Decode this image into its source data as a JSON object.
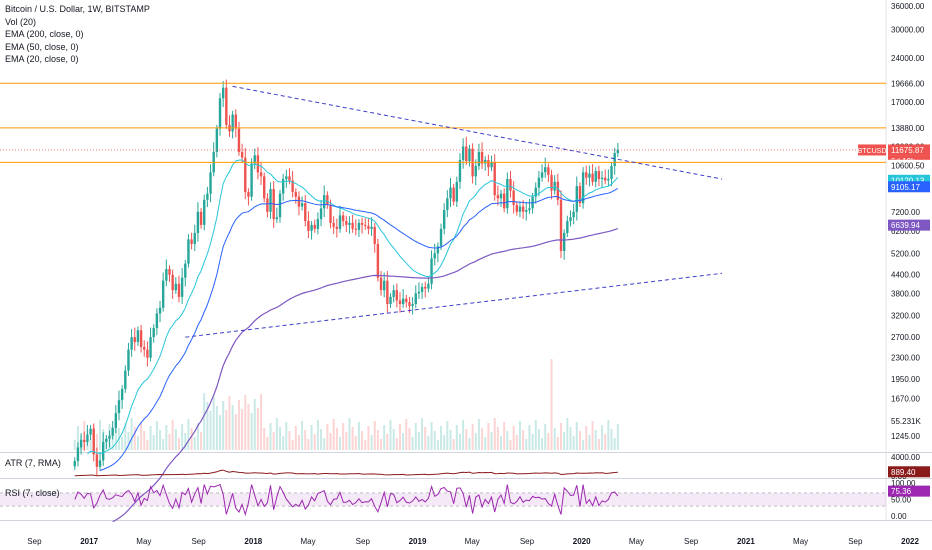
{
  "legend": {
    "title": "Bitcoin / U.S. Dollar, 1W, BITSTAMP",
    "vol": "Vol (20)",
    "ema200": "EMA (200, close, 0)",
    "ema50": "EMA (50, close, 0)",
    "ema20": "EMA (20, close, 0)"
  },
  "atr_label": "ATR (7, RMA)",
  "rsi_label": "RSI (7, close)",
  "colors": {
    "up": "#26a69a",
    "down": "#ef5350",
    "ema200": "#7e57c2",
    "ema50": "#2962ff",
    "ema20": "#26c6da",
    "level": "#ff9800",
    "trend": "#3d3dc6",
    "atr": "#8b1a1a",
    "rsi": "#9c27b0"
  },
  "chart_data": [
    {
      "type": "candlestick",
      "title": "Bitcoin / U.S. Dollar, 1W, BITSTAMP",
      "scale": "log",
      "y_ticks": [
        36000,
        30000,
        24000,
        17000,
        12000,
        9000,
        7200,
        6200,
        5200,
        4400,
        3800,
        3200,
        2700,
        2300,
        1950,
        1670,
        1245
      ],
      "x_ticks": [
        "Sep",
        "2017",
        "May",
        "Sep",
        "2018",
        "May",
        "Sep",
        "2019",
        "May",
        "Sep",
        "2020",
        "May",
        "Sep",
        "2021",
        "May",
        "Sep",
        "2022"
      ],
      "x_range": [
        "2016-07",
        "2022-01"
      ],
      "weekly_closes": [
        1025,
        1140,
        1210,
        1190,
        1260,
        1320,
        1080,
        980,
        1030,
        1190,
        1220,
        1250,
        1330,
        1490,
        1650,
        1800,
        2080,
        2450,
        2700,
        2600,
        2850,
        2500,
        2450,
        2300,
        2700,
        2900,
        3250,
        3400,
        4200,
        4600,
        4400,
        3900,
        4100,
        3700,
        4300,
        4800,
        5800,
        5600,
        6100,
        7200,
        6500,
        7900,
        8300,
        9800,
        11500,
        13800,
        17500,
        19000,
        14200,
        13500,
        15400,
        13800,
        11500,
        11000,
        8400,
        8100,
        10500,
        11200,
        9800,
        9500,
        8000,
        7200,
        8600,
        6800,
        6900,
        8300,
        9300,
        9500,
        9200,
        8400,
        8100,
        7500,
        7700,
        6700,
        6200,
        6500,
        6300,
        6800,
        7400,
        8200,
        7600,
        6600,
        6400,
        6300,
        7000,
        6700,
        6500,
        6600,
        6300,
        6250,
        6600,
        6500,
        6450,
        6300,
        6400,
        5600,
        4300,
        3900,
        4200,
        3500,
        3700,
        3900,
        3600,
        3500,
        3650,
        3550,
        3450,
        3500,
        3800,
        3850,
        4000,
        3950,
        4100,
        5000,
        5200,
        5500,
        6300,
        7300,
        8000,
        8700,
        7800,
        9100,
        10800,
        12000,
        10700,
        11800,
        9500,
        10300,
        11500,
        10500,
        10800,
        10200,
        10600,
        8200,
        8000,
        8300,
        7400,
        9300,
        8500,
        7600,
        7200,
        7500,
        7200,
        7300,
        7400,
        8100,
        8700,
        9400,
        9800,
        10200,
        9600,
        8500,
        9100,
        7900,
        5300,
        6100,
        6700,
        6900,
        7200,
        8800,
        7700,
        9800,
        9400,
        9700,
        9100,
        9900,
        9300,
        9400,
        9200,
        9300,
        10300,
        11400,
        11700
      ],
      "last_price": 11675.87,
      "levels": [
        19666.0,
        13880.0,
        10600.5
      ],
      "ema200_last": 6639.94,
      "ema50_last": 9105.17,
      "ema20_last": 10120.13,
      "price_tags": [
        "19666.00",
        "13880.00",
        "11675.87",
        "6d 19h",
        "10600.50",
        "10120.13",
        "9105.17",
        "6639.94"
      ],
      "symbol_tag": "BTCUSD",
      "volume_tag": "55.231K"
    },
    {
      "type": "line",
      "title": "ATR (7, RMA)",
      "y_ticks": [
        4000.0,
        0.0
      ],
      "last_value": 889.4,
      "last_tag": "889.40"
    },
    {
      "type": "line",
      "title": "RSI (7, close)",
      "y_ticks": [
        100.0,
        50.0,
        0.0
      ],
      "bands": [
        70,
        30
      ],
      "last_value": 75.36,
      "last_tag": "75.36"
    }
  ]
}
